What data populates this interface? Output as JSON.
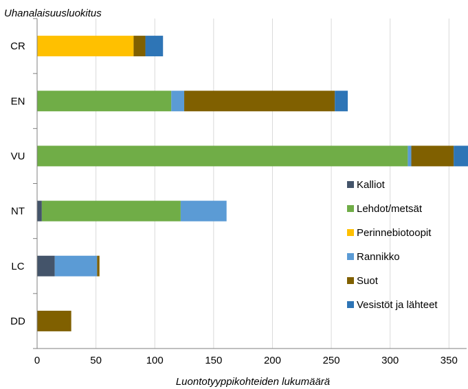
{
  "chart_data": {
    "type": "bar",
    "orientation": "horizontal",
    "stacked": true,
    "ylabel": "Uhanalaisuusluokitus",
    "xlabel": "Luontotyyppikohteiden lukumäärä",
    "categories": [
      "CR",
      "EN",
      "VU",
      "NT",
      "LC",
      "DD"
    ],
    "xlim": [
      0,
      365
    ],
    "xticks": [
      0,
      50,
      100,
      150,
      200,
      250,
      300,
      350
    ],
    "grid": "vertical",
    "legend_position": "right",
    "series": [
      {
        "name": "Kalliot",
        "color": "#44546A",
        "values": [
          0,
          0,
          0,
          4,
          15,
          0
        ]
      },
      {
        "name": "Lehdot/metsät",
        "color": "#70AD47",
        "values": [
          0,
          114,
          315,
          118,
          0,
          0
        ]
      },
      {
        "name": "Perinnebiotoopit",
        "color": "#FFC000",
        "values": [
          82,
          0,
          0,
          0,
          0,
          0
        ]
      },
      {
        "name": "Rannikko",
        "color": "#5B9BD5",
        "values": [
          0,
          11,
          3,
          39,
          36,
          0
        ]
      },
      {
        "name": "Suot",
        "color": "#806000",
        "values": [
          10,
          128,
          36,
          0,
          2,
          29
        ]
      },
      {
        "name": "Vesistöt ja lähteet",
        "color": "#2E75B6",
        "values": [
          15,
          11,
          14,
          0,
          0,
          0
        ]
      }
    ]
  }
}
